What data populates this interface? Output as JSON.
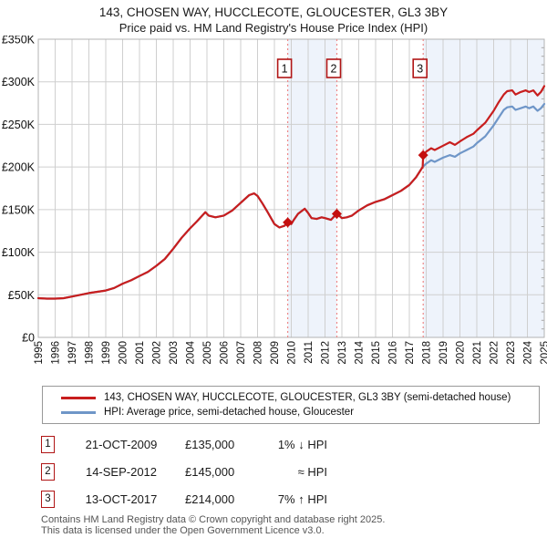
{
  "header": {
    "title": "143, CHOSEN WAY, HUCCLECOTE, GLOUCESTER, GL3 3BY",
    "subtitle": "Price paid vs. HM Land Registry's House Price Index (HPI)"
  },
  "colors": {
    "price_line": "#c81e1e",
    "hpi_line": "#6f96c8",
    "band": "#eef3fb",
    "grid": "#cfcfcf",
    "spine": "#b3b3b3",
    "dash_line": "#ee8888",
    "marker": "#c40f0f",
    "event_box_border": "#b01515",
    "axis_text": "#111111",
    "footer_text": "#555555"
  },
  "chart_data": {
    "type": "line",
    "title": "143, CHOSEN WAY, HUCCLECOTE, GLOUCESTER, GL3 3BY",
    "subtitle": "Price paid vs. HM Land Registry's House Price Index (HPI)",
    "xlabel": "",
    "ylabel": "",
    "y_units": "GBP thousands",
    "x_range": [
      1995,
      2025
    ],
    "y_range": [
      0,
      350
    ],
    "grid": true,
    "legend_position": "bottom",
    "x_ticks": [
      1995,
      1996,
      1997,
      1998,
      1999,
      2000,
      2001,
      2002,
      2003,
      2004,
      2005,
      2006,
      2007,
      2008,
      2009,
      2010,
      2011,
      2012,
      2013,
      2014,
      2015,
      2016,
      2017,
      2018,
      2019,
      2020,
      2021,
      2022,
      2023,
      2024,
      2025
    ],
    "y_ticks": [
      0,
      50,
      100,
      150,
      200,
      250,
      300,
      350
    ],
    "y_tick_labels": [
      "£0",
      "£50K",
      "£100K",
      "£150K",
      "£200K",
      "£250K",
      "£300K",
      "£350K"
    ],
    "bands": [
      [
        2009.79,
        2012.7
      ],
      [
        2017.82,
        2025
      ]
    ],
    "events": [
      {
        "n": "1",
        "x": 2009.79,
        "y": 135
      },
      {
        "n": "2",
        "x": 2012.7,
        "y": 145
      },
      {
        "n": "3",
        "x": 2017.82,
        "y": 214
      }
    ],
    "series": [
      {
        "name": "HPI: Average price, semi-detached house, Gloucester",
        "color_key": "hpi_line",
        "points": [
          [
            1995,
            46
          ],
          [
            1995.5,
            45.5
          ],
          [
            1996,
            45.5
          ],
          [
            1996.5,
            46
          ],
          [
            1997,
            48
          ],
          [
            1997.5,
            50
          ],
          [
            1998,
            52
          ],
          [
            1998.5,
            53.5
          ],
          [
            1999,
            55
          ],
          [
            1999.5,
            58
          ],
          [
            2000,
            63
          ],
          [
            2000.5,
            67
          ],
          [
            2001,
            72
          ],
          [
            2001.5,
            77
          ],
          [
            2002,
            84
          ],
          [
            2002.5,
            92
          ],
          [
            2003,
            104
          ],
          [
            2003.5,
            117
          ],
          [
            2004,
            128
          ],
          [
            2004.4,
            136
          ],
          [
            2004.9,
            147
          ],
          [
            2005.1,
            143
          ],
          [
            2005.5,
            141
          ],
          [
            2006,
            143
          ],
          [
            2006.5,
            149
          ],
          [
            2007,
            158
          ],
          [
            2007.5,
            167
          ],
          [
            2007.8,
            169
          ],
          [
            2008,
            166
          ],
          [
            2008.3,
            157
          ],
          [
            2008.6,
            147
          ],
          [
            2009,
            133
          ],
          [
            2009.3,
            129
          ],
          [
            2009.6,
            131
          ],
          [
            2009.79,
            136
          ],
          [
            2010,
            133
          ],
          [
            2010.15,
            138
          ],
          [
            2010.4,
            145
          ],
          [
            2010.8,
            151
          ],
          [
            2011,
            146
          ],
          [
            2011.2,
            140
          ],
          [
            2011.5,
            139
          ],
          [
            2011.8,
            141
          ],
          [
            2012,
            140
          ],
          [
            2012.35,
            138
          ],
          [
            2012.7,
            146
          ],
          [
            2013,
            140
          ],
          [
            2013.3,
            141
          ],
          [
            2013.6,
            143
          ],
          [
            2014,
            149
          ],
          [
            2014.5,
            155
          ],
          [
            2015,
            159
          ],
          [
            2015.5,
            162
          ],
          [
            2016,
            167
          ],
          [
            2016.5,
            172
          ],
          [
            2017,
            179
          ],
          [
            2017.4,
            188
          ],
          [
            2017.79,
            200
          ],
          [
            2018,
            204
          ],
          [
            2018.3,
            208
          ],
          [
            2018.5,
            206
          ],
          [
            2019,
            211
          ],
          [
            2019.4,
            214
          ],
          [
            2019.7,
            212
          ],
          [
            2020,
            216
          ],
          [
            2020.4,
            220
          ],
          [
            2020.8,
            224
          ],
          [
            2021,
            228
          ],
          [
            2021.5,
            236
          ],
          [
            2022,
            249
          ],
          [
            2022.3,
            258
          ],
          [
            2022.6,
            267
          ],
          [
            2022.8,
            270
          ],
          [
            2023.1,
            271
          ],
          [
            2023.3,
            267
          ],
          [
            2023.6,
            269
          ],
          [
            2023.9,
            271
          ],
          [
            2024.1,
            269
          ],
          [
            2024.35,
            271
          ],
          [
            2024.6,
            266
          ],
          [
            2024.8,
            269
          ],
          [
            2025,
            274
          ]
        ]
      },
      {
        "name": "143, CHOSEN WAY, HUCCLECOTE, GLOUCESTER, GL3 3BY (semi-detached house)",
        "color_key": "price_line",
        "points": [
          [
            1995,
            46
          ],
          [
            1995.5,
            45.5
          ],
          [
            1996,
            45.5
          ],
          [
            1996.5,
            46
          ],
          [
            1997,
            48
          ],
          [
            1997.5,
            50
          ],
          [
            1998,
            52
          ],
          [
            1998.5,
            53.5
          ],
          [
            1999,
            55
          ],
          [
            1999.5,
            58
          ],
          [
            2000,
            63
          ],
          [
            2000.5,
            67
          ],
          [
            2001,
            72
          ],
          [
            2001.5,
            77
          ],
          [
            2002,
            84
          ],
          [
            2002.5,
            92
          ],
          [
            2003,
            104
          ],
          [
            2003.5,
            117
          ],
          [
            2004,
            128
          ],
          [
            2004.4,
            136
          ],
          [
            2004.9,
            147
          ],
          [
            2005.1,
            143
          ],
          [
            2005.5,
            141
          ],
          [
            2006,
            143
          ],
          [
            2006.5,
            149
          ],
          [
            2007,
            158
          ],
          [
            2007.5,
            167
          ],
          [
            2007.8,
            169
          ],
          [
            2008,
            166
          ],
          [
            2008.3,
            157
          ],
          [
            2008.6,
            147
          ],
          [
            2009,
            133
          ],
          [
            2009.3,
            129
          ],
          [
            2009.6,
            131
          ],
          [
            2009.79,
            135
          ],
          [
            2010,
            133
          ],
          [
            2010.15,
            138
          ],
          [
            2010.4,
            145
          ],
          [
            2010.8,
            151
          ],
          [
            2011,
            146
          ],
          [
            2011.2,
            140
          ],
          [
            2011.5,
            139
          ],
          [
            2011.8,
            141
          ],
          [
            2012,
            140
          ],
          [
            2012.35,
            138
          ],
          [
            2012.7,
            145
          ],
          [
            2013,
            140
          ],
          [
            2013.3,
            141
          ],
          [
            2013.6,
            143
          ],
          [
            2014,
            149
          ],
          [
            2014.5,
            155
          ],
          [
            2015,
            159
          ],
          [
            2015.5,
            162
          ],
          [
            2016,
            167
          ],
          [
            2016.5,
            172
          ],
          [
            2017,
            179
          ],
          [
            2017.4,
            188
          ],
          [
            2017.79,
            200
          ],
          [
            2017.82,
            214
          ],
          [
            2018,
            218
          ],
          [
            2018.3,
            222
          ],
          [
            2018.5,
            220
          ],
          [
            2019,
            225
          ],
          [
            2019.4,
            229
          ],
          [
            2019.7,
            226
          ],
          [
            2020,
            230
          ],
          [
            2020.4,
            235
          ],
          [
            2020.8,
            239
          ],
          [
            2021,
            243
          ],
          [
            2021.5,
            252
          ],
          [
            2022,
            266
          ],
          [
            2022.3,
            276
          ],
          [
            2022.6,
            285
          ],
          [
            2022.8,
            289
          ],
          [
            2023.1,
            290
          ],
          [
            2023.3,
            285
          ],
          [
            2023.6,
            288
          ],
          [
            2023.9,
            290
          ],
          [
            2024.1,
            288
          ],
          [
            2024.35,
            290
          ],
          [
            2024.6,
            284
          ],
          [
            2024.8,
            288
          ],
          [
            2025,
            295
          ]
        ]
      }
    ]
  },
  "legend": {
    "items": [
      {
        "label": "143, CHOSEN WAY, HUCCLECOTE, GLOUCESTER, GL3 3BY (semi-detached house)"
      },
      {
        "label": "HPI: Average price, semi-detached house, Gloucester"
      }
    ]
  },
  "transactions": [
    {
      "n": "1",
      "date": "21-OCT-2009",
      "price": "£135,000",
      "vs_hpi": "1% ↓ HPI"
    },
    {
      "n": "2",
      "date": "14-SEP-2012",
      "price": "£145,000",
      "vs_hpi": "≈ HPI"
    },
    {
      "n": "3",
      "date": "13-OCT-2017",
      "price": "£214,000",
      "vs_hpi": "7% ↑ HPI"
    }
  ],
  "footer": {
    "line1": "Contains HM Land Registry data © Crown copyright and database right 2025.",
    "line2": "This data is licensed under the Open Government Licence v3.0."
  }
}
